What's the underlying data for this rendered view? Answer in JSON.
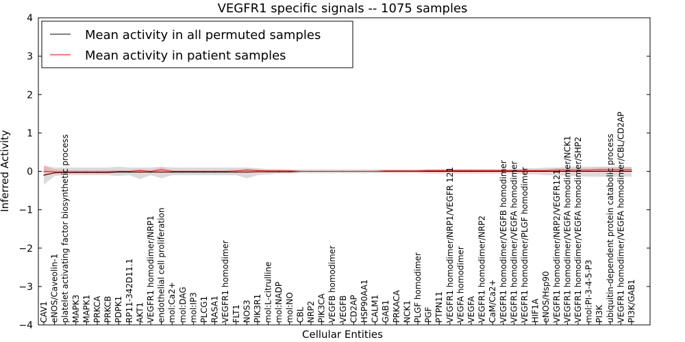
{
  "chart_data": {
    "type": "line",
    "title": "VEGFR1 specific signals -- 1075 samples",
    "xlabel": "Cellular Entities",
    "ylabel": "Inferred Activity",
    "ylim": [
      -4,
      4
    ],
    "yticks": [
      -4,
      -3,
      -2,
      -1,
      0,
      1,
      2,
      3,
      4
    ],
    "ytick_labels": [
      "−4",
      "−3",
      "−2",
      "−1",
      "0",
      "1",
      "2",
      "3",
      "4"
    ],
    "grid": false,
    "legend_position": "top-left",
    "categories": [
      "CAV1",
      "eNOS/Caveolin-1",
      "platelet activating factor biosynthetic process",
      "MAPK3",
      "MAPK1",
      "PRKCA",
      "PRKCB",
      "PDPK1",
      "RP11-342D11.1",
      "AKT1",
      "VEGFR1 homodimer/NRP1",
      "endothelial cell proliferation",
      "mol:Ca2+",
      "mol:DAG",
      "mol:IP3",
      "PLCG1",
      "RASA1",
      "VEGFR1 homodimer",
      "FLT1",
      "NOS3",
      "PIK3R1",
      "mol:L-citrulline",
      "mol:NADP",
      "mol:NO",
      "CBL",
      "NRP2",
      "PIK3CA",
      "VEGFB homodimer",
      "VEGFB",
      "CD2AP",
      "HSP90AA1",
      "CALM1",
      "GAB1",
      "PRKACA",
      "NCK1",
      "PLGF homodimer",
      "PGF",
      "PTPN11",
      "VEGFR1 homodimer/NRP1/VEGFR 121",
      "VEGFA homodimer",
      "VEGFA",
      "VEGFR1 homodimer/NRP2",
      "CaM/Ca2+",
      "VEGFR1 homodimer/VEGFB homodimer",
      "VEGFR1 homodimer/VEGFA homodimer",
      "VEGFR1 homodimer/PLGF homodimer",
      "HIF1A",
      "eNOS/Hsp90",
      "VEGFR1 homodimer/NRP2/VEGFR121",
      "VEGFR1 homodimer/VEGFA homodimer/NCK1",
      "VEGFR1 homodimer/VEGFA homodimer/SHP2",
      "mol:PI-3-4-5-P3",
      "PI3K",
      "ubiquitin-dependent protein catabolic process",
      "VEGFR1 homodimer/VEGFA homodimer/CBL/CD2AP",
      "PI3K/GAB1"
    ],
    "series": [
      {
        "name": "Mean activity in all permuted samples",
        "color": "#000000",
        "values": [
          -0.1,
          -0.04,
          -0.03,
          -0.03,
          -0.03,
          -0.03,
          -0.03,
          -0.02,
          -0.02,
          -0.02,
          -0.02,
          -0.02,
          -0.02,
          -0.02,
          -0.02,
          -0.02,
          -0.02,
          -0.02,
          -0.02,
          -0.02,
          -0.01,
          -0.01,
          -0.01,
          -0.01,
          0.0,
          0.0,
          0.0,
          0.0,
          0.0,
          0.0,
          0.0,
          0.0,
          0.0,
          0.0,
          0.0,
          0.0,
          0.0,
          0.0,
          0.0,
          0.0,
          0.0,
          0.0,
          0.0,
          0.0,
          0.0,
          0.0,
          0.0,
          0.0,
          0.0,
          0.0,
          0.0,
          0.0,
          0.0,
          0.0,
          0.0,
          0.0
        ],
        "band_lower": [
          -0.35,
          -0.12,
          -0.1,
          -0.1,
          -0.1,
          -0.1,
          -0.1,
          -0.12,
          -0.1,
          -0.2,
          -0.1,
          -0.18,
          -0.1,
          -0.1,
          -0.1,
          -0.1,
          -0.1,
          -0.1,
          -0.1,
          -0.18,
          -0.1,
          -0.08,
          -0.06,
          -0.06,
          -0.05,
          -0.05,
          -0.05,
          -0.05,
          -0.05,
          -0.05,
          -0.05,
          -0.05,
          -0.05,
          -0.05,
          -0.05,
          -0.05,
          -0.06,
          -0.06,
          -0.06,
          -0.06,
          -0.06,
          -0.06,
          -0.06,
          -0.06,
          -0.06,
          -0.08,
          -0.08,
          -0.1,
          -0.1,
          -0.12,
          -0.12,
          -0.14,
          -0.14,
          -0.14,
          -0.14,
          -0.14
        ],
        "band_upper": [
          0.15,
          0.1,
          0.1,
          0.1,
          0.1,
          0.1,
          0.1,
          0.12,
          0.1,
          0.1,
          0.1,
          0.12,
          0.1,
          0.1,
          0.1,
          0.1,
          0.1,
          0.1,
          0.1,
          0.1,
          0.08,
          0.06,
          0.06,
          0.05,
          0.05,
          0.05,
          0.05,
          0.05,
          0.05,
          0.05,
          0.05,
          0.05,
          0.05,
          0.05,
          0.05,
          0.05,
          0.06,
          0.06,
          0.06,
          0.06,
          0.06,
          0.06,
          0.06,
          0.06,
          0.06,
          0.08,
          0.08,
          0.1,
          0.1,
          0.12,
          0.12,
          0.12,
          0.12,
          0.12,
          0.12,
          0.12
        ]
      },
      {
        "name": "Mean activity in patient samples",
        "color": "#ff0000",
        "values": [
          0.0,
          -0.01,
          -0.01,
          -0.01,
          -0.01,
          -0.01,
          -0.01,
          0.0,
          0.0,
          0.02,
          0.0,
          0.04,
          0.0,
          0.0,
          0.0,
          0.0,
          0.0,
          0.0,
          0.01,
          0.03,
          0.02,
          0.01,
          0.01,
          0.01,
          0.0,
          0.0,
          0.0,
          0.0,
          0.0,
          0.0,
          0.0,
          0.0,
          0.01,
          0.01,
          0.01,
          0.01,
          0.02,
          0.02,
          0.02,
          0.02,
          0.02,
          0.02,
          0.02,
          0.02,
          0.02,
          0.02,
          0.02,
          0.02,
          0.03,
          0.03,
          0.03,
          0.03,
          0.04,
          0.04,
          0.04,
          0.04
        ],
        "band_lower": [
          -0.12,
          -0.05,
          -0.04,
          -0.04,
          -0.04,
          -0.04,
          -0.04,
          -0.03,
          -0.03,
          -0.02,
          -0.03,
          -0.02,
          -0.03,
          -0.03,
          -0.03,
          -0.03,
          -0.03,
          -0.03,
          -0.02,
          -0.01,
          -0.01,
          -0.02,
          -0.02,
          -0.02,
          -0.01,
          -0.01,
          -0.01,
          -0.01,
          -0.01,
          -0.01,
          -0.01,
          -0.01,
          -0.01,
          -0.01,
          -0.01,
          -0.01,
          -0.01,
          -0.01,
          -0.01,
          -0.01,
          -0.01,
          -0.01,
          -0.01,
          -0.01,
          -0.01,
          -0.01,
          -0.01,
          -0.01,
          -0.01,
          -0.01,
          -0.01,
          -0.01,
          -0.01,
          -0.01,
          -0.01,
          -0.01
        ],
        "band_upper": [
          0.15,
          0.05,
          0.03,
          0.03,
          0.03,
          0.03,
          0.03,
          0.03,
          0.03,
          0.06,
          0.03,
          0.1,
          0.03,
          0.03,
          0.03,
          0.03,
          0.03,
          0.03,
          0.04,
          0.07,
          0.05,
          0.04,
          0.04,
          0.03,
          0.02,
          0.02,
          0.02,
          0.02,
          0.02,
          0.02,
          0.02,
          0.02,
          0.03,
          0.03,
          0.03,
          0.03,
          0.04,
          0.04,
          0.05,
          0.05,
          0.05,
          0.05,
          0.05,
          0.05,
          0.05,
          0.05,
          0.05,
          0.05,
          0.08,
          0.08,
          0.08,
          0.08,
          0.1,
          0.1,
          0.1,
          0.1
        ]
      }
    ]
  }
}
